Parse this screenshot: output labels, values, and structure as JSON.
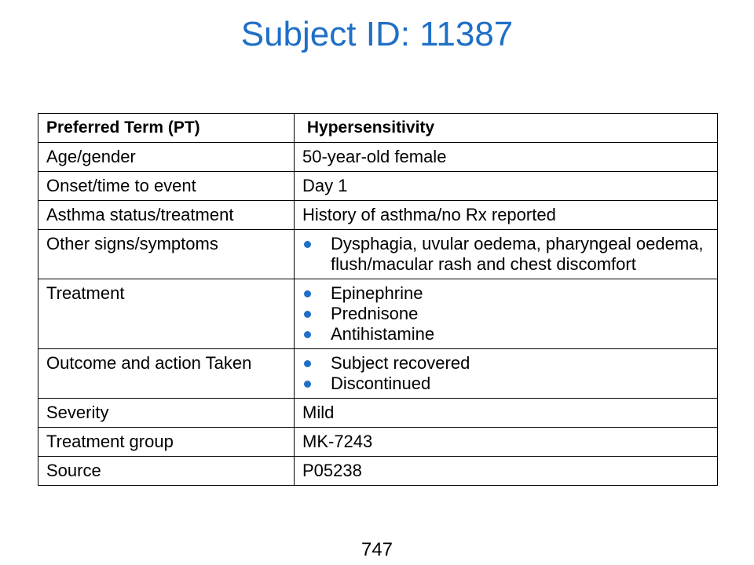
{
  "title": "Subject ID: 11387",
  "accent_color": "#1f6fc6",
  "table": {
    "header": {
      "label": "Preferred Term (PT)",
      "value": "Hypersensitivity"
    },
    "rows": [
      {
        "label": "Age/gender",
        "value": "50-year-old female"
      },
      {
        "label": "Onset/time to event",
        "value": "Day 1"
      },
      {
        "label": "Asthma status/treatment",
        "value": "History of asthma/no Rx reported"
      },
      {
        "label": "Other signs/symptoms",
        "bullets": [
          "Dysphagia, uvular oedema, pharyngeal oedema, flush/macular rash and chest discomfort"
        ]
      },
      {
        "label": "Treatment",
        "bullets": [
          "Epinephrine",
          "Prednisone",
          "Antihistamine"
        ]
      },
      {
        "label": "Outcome and action Taken",
        "bullets": [
          "Subject recovered",
          "Discontinued"
        ]
      },
      {
        "label": "Severity",
        "value": "Mild"
      },
      {
        "label": "Treatment group",
        "value": "MK-7243"
      },
      {
        "label": "Source",
        "value": "P05238"
      }
    ]
  },
  "page_number": "747"
}
